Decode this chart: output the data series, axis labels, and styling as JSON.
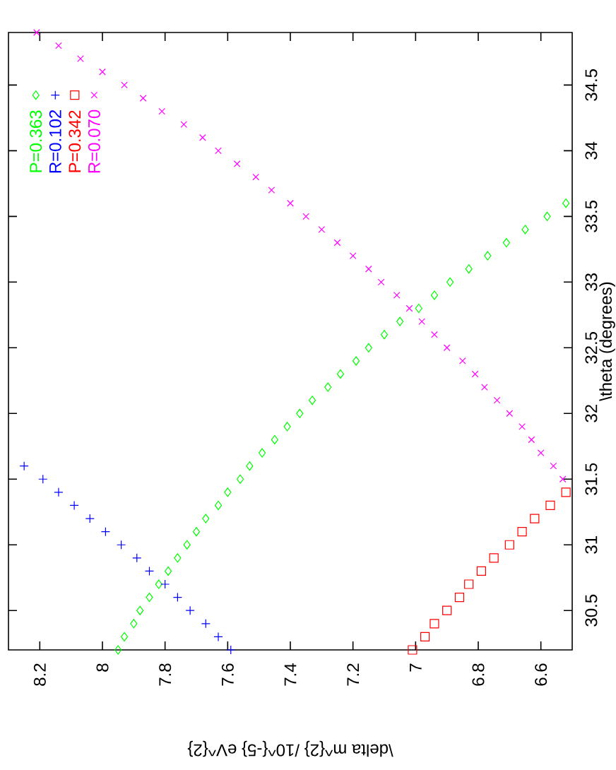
{
  "chart_data": {
    "type": "scatter",
    "xlabel": "\\delta m^{2} /10^{-5} eV^{2}",
    "ylabel": "\\theta (degrees)",
    "xlim": [
      8.3,
      6.5
    ],
    "ylim": [
      30.2,
      34.9
    ],
    "xticks": [
      8.2,
      8,
      7.8,
      7.6,
      7.4,
      7.2,
      7,
      6.8,
      6.6
    ],
    "yticks": [
      30.5,
      31,
      31.5,
      32,
      32.5,
      33,
      33.5,
      34,
      34.5
    ],
    "legend": "top left",
    "series": [
      {
        "name": "P=0.363",
        "color": "#00ff00",
        "marker": "diamond",
        "x": [
          7.95,
          7.93,
          7.9,
          7.88,
          7.85,
          7.82,
          7.79,
          7.76,
          7.73,
          7.7,
          7.67,
          7.63,
          7.6,
          7.56,
          7.53,
          7.49,
          7.45,
          7.41,
          7.37,
          7.33,
          7.28,
          7.24,
          7.19,
          7.15,
          7.1,
          7.05,
          6.99,
          6.94,
          6.89,
          6.83,
          6.77,
          6.71,
          6.65,
          6.58,
          6.52
        ],
        "values": [
          30.2,
          30.3,
          30.4,
          30.5,
          30.6,
          30.7,
          30.8,
          30.9,
          31.0,
          31.1,
          31.2,
          31.3,
          31.4,
          31.5,
          31.6,
          31.7,
          31.8,
          31.9,
          32.0,
          32.1,
          32.2,
          32.3,
          32.4,
          32.5,
          32.6,
          32.7,
          32.8,
          32.9,
          33.0,
          33.1,
          33.2,
          33.3,
          33.4,
          33.5,
          33.6
        ]
      },
      {
        "name": "R=0.102",
        "color": "#0000ff",
        "marker": "plus",
        "x": [
          7.59,
          7.63,
          7.67,
          7.72,
          7.76,
          7.8,
          7.85,
          7.89,
          7.94,
          7.99,
          8.04,
          8.09,
          8.14,
          8.19,
          8.25
        ],
        "values": [
          30.2,
          30.3,
          30.4,
          30.5,
          30.6,
          30.7,
          30.8,
          30.9,
          31.0,
          31.1,
          31.2,
          31.3,
          31.4,
          31.5,
          31.6
        ]
      },
      {
        "name": "P=0.342",
        "color": "#ff0000",
        "marker": "square",
        "x": [
          7.01,
          6.97,
          6.94,
          6.9,
          6.86,
          6.83,
          6.79,
          6.75,
          6.7,
          6.66,
          6.62,
          6.57,
          6.52
        ],
        "values": [
          30.2,
          30.3,
          30.4,
          30.5,
          30.6,
          30.7,
          30.8,
          30.9,
          31.0,
          31.1,
          31.2,
          31.3,
          31.4
        ]
      },
      {
        "name": "R=0.070",
        "color": "#ff00ff",
        "marker": "cross",
        "x": [
          6.53,
          6.56,
          6.6,
          6.63,
          6.66,
          6.7,
          6.74,
          6.78,
          6.81,
          6.85,
          6.9,
          6.94,
          6.98,
          7.02,
          7.06,
          7.11,
          7.15,
          7.2,
          7.25,
          7.3,
          7.35,
          7.4,
          7.46,
          7.51,
          7.57,
          7.63,
          7.68,
          7.74,
          7.81,
          7.87,
          7.93,
          8.0,
          8.07,
          8.14,
          8.21
        ],
        "values": [
          31.5,
          31.6,
          31.7,
          31.8,
          31.9,
          32.0,
          32.1,
          32.2,
          32.3,
          32.4,
          32.5,
          32.6,
          32.7,
          32.8,
          32.9,
          33.0,
          33.1,
          33.2,
          33.3,
          33.4,
          33.5,
          33.6,
          33.7,
          33.8,
          33.9,
          34.0,
          34.1,
          34.2,
          34.3,
          34.4,
          34.5,
          34.6,
          34.7,
          34.8,
          34.9
        ]
      }
    ]
  }
}
